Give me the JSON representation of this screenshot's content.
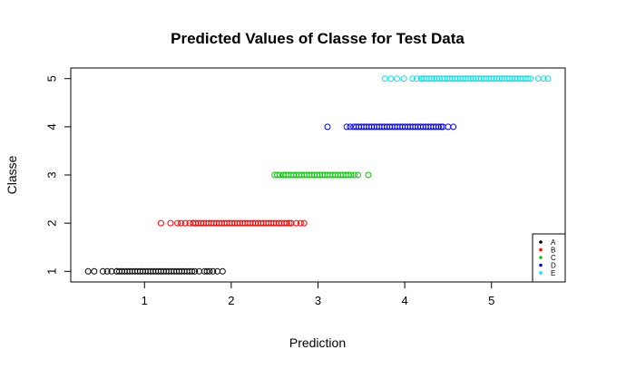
{
  "chart_data": {
    "type": "scatter",
    "title": "Predicted Values of Classe for Test Data",
    "xlabel": "Prediction",
    "ylabel": "Classe",
    "xlim": [
      0.15,
      5.85
    ],
    "ylim": [
      0.78,
      5.22
    ],
    "xticks": [
      1,
      2,
      3,
      4,
      5
    ],
    "yticks": [
      1,
      2,
      3,
      4,
      5
    ],
    "grid": false,
    "legend_position": "bottom-right",
    "series": [
      {
        "name": "A",
        "y": 1,
        "color": "#000000",
        "x_sparse": [
          0.35,
          0.42,
          0.52,
          0.57,
          0.62,
          0.68,
          1.58,
          1.63,
          1.69,
          1.72,
          1.75,
          1.79,
          1.84,
          1.9
        ],
        "x_dense_range": [
          0.68,
          1.55
        ]
      },
      {
        "name": "B",
        "y": 2,
        "color": "#ff0000",
        "x_sparse": [
          1.19,
          1.3,
          1.38,
          1.42,
          1.47,
          1.52,
          1.56,
          2.69,
          2.75,
          2.8,
          2.84
        ],
        "x_dense_range": [
          1.56,
          2.67
        ]
      },
      {
        "name": "C",
        "y": 3,
        "color": "#00cd00",
        "x_sparse": [
          2.5,
          2.53,
          2.56,
          2.6,
          3.38,
          3.42,
          3.46,
          3.58
        ],
        "x_dense_range": [
          2.6,
          3.35
        ]
      },
      {
        "name": "D",
        "y": 4,
        "color": "#0000ff",
        "x_sparse": [
          3.11,
          3.33,
          3.37,
          4.44,
          4.5,
          4.56
        ],
        "x_dense_range": [
          3.41,
          4.42
        ]
      },
      {
        "name": "E",
        "y": 5,
        "color": "#00e5ee",
        "x_sparse": [
          3.77,
          3.84,
          3.91,
          3.99,
          4.09,
          4.14,
          4.19,
          5.54,
          5.6,
          5.65
        ],
        "x_dense_range": [
          4.19,
          5.45
        ]
      }
    ]
  }
}
